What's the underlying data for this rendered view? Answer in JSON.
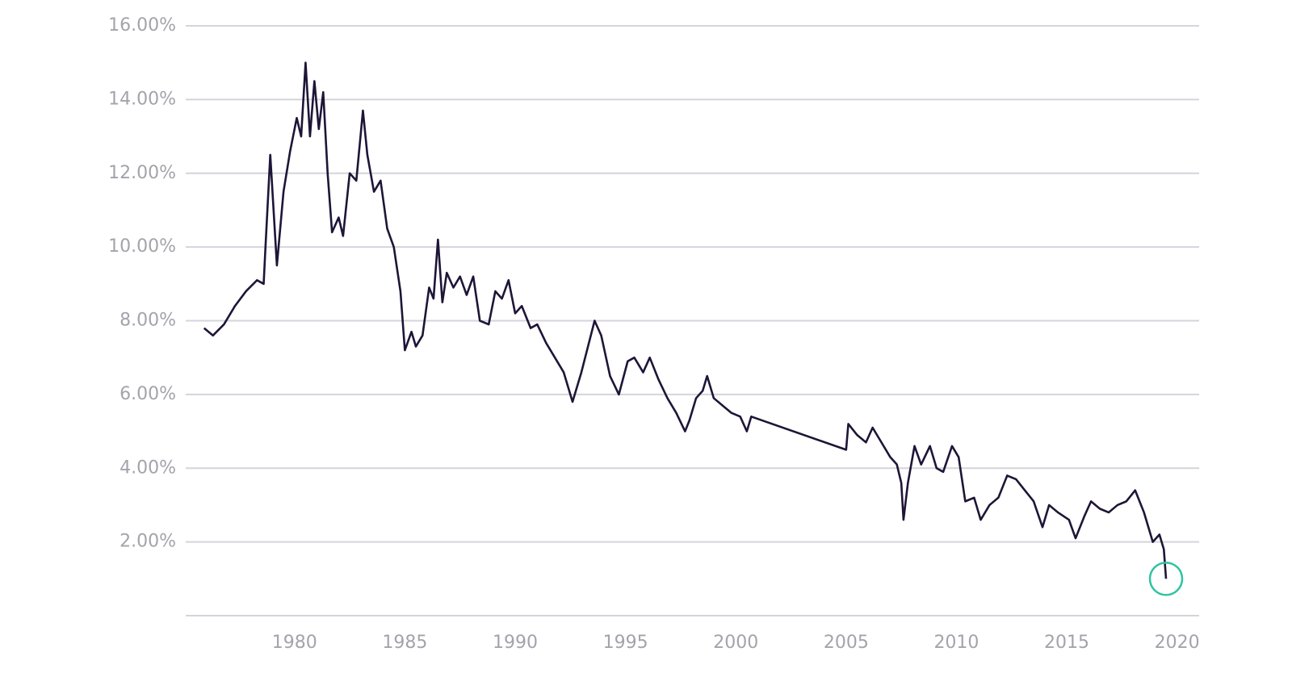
{
  "chart_data": {
    "type": "line",
    "xlim": [
      1975.8,
      2021
    ],
    "xticks": [
      1980,
      1985,
      1990,
      1995,
      2000,
      2005,
      2010,
      2015,
      2020
    ],
    "ylim": [
      0,
      16
    ],
    "yticks": [
      {
        "value": 2,
        "label": "2.00%"
      },
      {
        "value": 4,
        "label": "4.00%"
      },
      {
        "value": 6,
        "label": "6.00%"
      },
      {
        "value": 8,
        "label": "8.00%"
      },
      {
        "value": 10,
        "label": "10.00%"
      },
      {
        "value": 12,
        "label": "12.00%"
      },
      {
        "value": 14,
        "label": "14.00%"
      },
      {
        "value": 16,
        "label": "16.00%"
      }
    ],
    "grid": true,
    "series": [
      {
        "color": "#1e1537",
        "x": [
          1975.9,
          1976.3,
          1976.8,
          1977.3,
          1977.8,
          1978.3,
          1978.6,
          1978.7,
          1978.9,
          1979.1,
          1979.2,
          1979.5,
          1979.8,
          1980.1,
          1980.3,
          1980.5,
          1980.7,
          1980.9,
          1981.1,
          1981.3,
          1981.5,
          1981.7,
          1982.0,
          1982.2,
          1982.5,
          1982.8,
          1983.1,
          1983.3,
          1983.6,
          1983.9,
          1984.2,
          1984.5,
          1984.8,
          1985.0,
          1985.3,
          1985.5,
          1985.8,
          1986.1,
          1986.3,
          1986.5,
          1986.7,
          1986.9,
          1987.2,
          1987.5,
          1987.8,
          1988.1,
          1988.4,
          1988.8,
          1989.1,
          1989.4,
          1989.7,
          1990.0,
          1990.3,
          1990.7,
          1991.0,
          1991.4,
          1991.8,
          1992.2,
          1992.6,
          1993.0,
          1993.3,
          1993.6,
          1993.9,
          1994.3,
          1994.7,
          1995.1,
          1995.4,
          1995.8,
          1996.1,
          1996.5,
          1996.9,
          1997.3,
          1997.7,
          1997.9,
          1998.2,
          1998.5,
          1998.7,
          1999.0,
          1999.4,
          1999.8,
          2000.2,
          2000.5,
          2000.7,
          2005.0,
          2005.1,
          2005.5,
          2005.9,
          2006.2,
          2006.6,
          2007.0,
          2007.3,
          2007.5,
          2007.6,
          2007.8,
          2008.1,
          2008.4,
          2008.8,
          2009.1,
          2009.4,
          2009.8,
          2010.1,
          2010.4,
          2010.8,
          2011.1,
          2011.5,
          2011.9,
          2012.3,
          2012.7,
          2013.1,
          2013.5,
          2013.9,
          2014.2,
          2014.6,
          2015.1,
          2015.4,
          2015.8,
          2016.1,
          2016.5,
          2016.9,
          2017.3,
          2017.7,
          2018.1,
          2018.5,
          2018.9,
          2019.2,
          2019.4,
          2019.5
        ],
        "values": [
          7.8,
          7.6,
          7.9,
          8.4,
          8.8,
          9.1,
          9.0,
          10.2,
          12.5,
          10.5,
          9.5,
          11.5,
          12.6,
          13.5,
          13.0,
          15.0,
          13.0,
          14.5,
          13.2,
          14.2,
          12.0,
          10.4,
          10.8,
          10.3,
          12.0,
          11.8,
          13.7,
          12.5,
          11.5,
          11.8,
          10.5,
          10.0,
          8.8,
          7.2,
          7.7,
          7.3,
          7.6,
          8.9,
          8.6,
          10.2,
          8.5,
          9.3,
          8.9,
          9.2,
          8.7,
          9.2,
          8.0,
          7.9,
          8.8,
          8.6,
          9.1,
          8.2,
          8.4,
          7.8,
          7.9,
          7.4,
          7.0,
          6.6,
          5.8,
          6.6,
          7.3,
          8.0,
          7.6,
          6.5,
          6.0,
          6.9,
          7.0,
          6.6,
          7.0,
          6.4,
          5.9,
          5.5,
          5.0,
          5.3,
          5.9,
          6.1,
          6.5,
          5.9,
          5.7,
          5.5,
          5.4,
          5.0,
          5.4,
          4.5,
          5.2,
          4.9,
          4.7,
          5.1,
          4.7,
          4.3,
          4.1,
          3.6,
          2.6,
          3.6,
          4.6,
          4.1,
          4.6,
          4.0,
          3.9,
          4.6,
          4.3,
          3.1,
          3.2,
          2.6,
          3.0,
          3.2,
          3.8,
          3.7,
          3.4,
          3.1,
          2.4,
          3.0,
          2.8,
          2.6,
          2.1,
          2.7,
          3.1,
          2.9,
          2.8,
          3.0,
          3.1,
          3.4,
          2.8,
          2.0,
          2.2,
          1.8,
          1.0
        ]
      }
    ]
  }
}
